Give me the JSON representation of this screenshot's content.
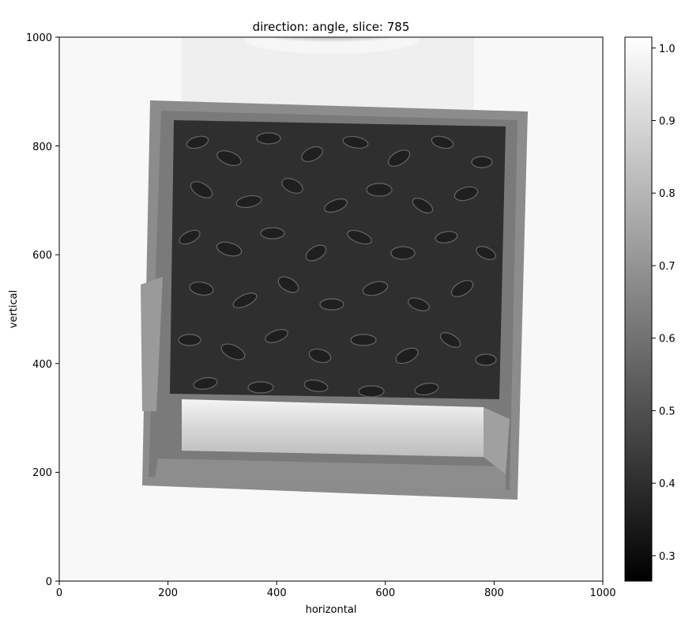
{
  "title": "direction: angle, slice: 785",
  "image": {
    "xlabel": "horizontal",
    "ylabel": "vertical",
    "x_ticks": [
      0,
      200,
      400,
      600,
      800,
      1000
    ],
    "y_ticks": [
      0,
      200,
      400,
      600,
      800,
      1000
    ],
    "x_range": [
      0,
      1000
    ],
    "y_range": [
      0,
      1000
    ],
    "colormap": "gray",
    "content": "X-ray projection of a tilted box container filled with seeds; bright empty band near bottom, dark granular fill above"
  },
  "colorbar": {
    "range": [
      0.265,
      1.015
    ],
    "ticks": [
      0.3,
      0.4,
      0.5,
      0.6,
      0.7,
      0.8,
      0.9,
      1.0
    ],
    "tick_labels": [
      "0.3",
      "0.4",
      "0.5",
      "0.6",
      "0.7",
      "0.8",
      "0.9",
      "1.0"
    ],
    "colors": {
      "low": "#000000",
      "high": "#ffffff"
    }
  }
}
